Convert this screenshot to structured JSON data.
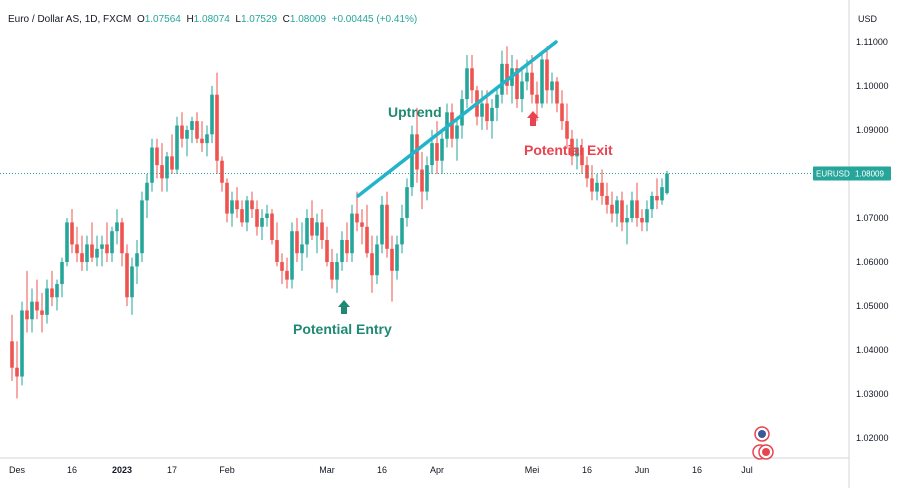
{
  "legend": {
    "symbol": "Euro / Dollar AS, 1D, FXCM",
    "open_label": "O",
    "open": "1.07564",
    "high_label": "H",
    "high": "1.08074",
    "low_label": "L",
    "low": "1.07529",
    "close_label": "C",
    "close": "1.08009",
    "change": "+0.00445 (+0.41%)"
  },
  "chart_data": {
    "type": "candlestick",
    "currency": "USD",
    "y_ticks": [
      "1.02000",
      "1.03000",
      "1.04000",
      "1.05000",
      "1.06000",
      "1.07000",
      "1.08000",
      "1.09000",
      "1.10000",
      "1.11000"
    ],
    "x_ticks": [
      {
        "label": "Des",
        "i": 1,
        "bold": false
      },
      {
        "label": "16",
        "i": 12,
        "bold": false
      },
      {
        "label": "2023",
        "i": 22,
        "bold": true
      },
      {
        "label": "17",
        "i": 32,
        "bold": false
      },
      {
        "label": "Feb",
        "i": 43,
        "bold": false
      },
      {
        "label": "Mar",
        "i": 63,
        "bold": false
      },
      {
        "label": "16",
        "i": 74,
        "bold": false
      },
      {
        "label": "Apr",
        "i": 85,
        "bold": false
      },
      {
        "label": "Mei",
        "i": 104,
        "bold": false
      },
      {
        "label": "16",
        "i": 115,
        "bold": false
      },
      {
        "label": "Jun",
        "i": 126,
        "bold": false
      },
      {
        "label": "16",
        "i": 137,
        "bold": false
      },
      {
        "label": "Jul",
        "i": 147,
        "bold": false
      }
    ],
    "price_label": {
      "symbol": "EURUSD",
      "value": "1.08009"
    },
    "ylim": [
      1.0155,
      1.1195
    ],
    "candles": [
      [
        1.042,
        1.048,
        1.033,
        1.036
      ],
      [
        1.036,
        1.042,
        1.029,
        1.034
      ],
      [
        1.034,
        1.051,
        1.032,
        1.049
      ],
      [
        1.049,
        1.058,
        1.044,
        1.047
      ],
      [
        1.047,
        1.054,
        1.044,
        1.051
      ],
      [
        1.051,
        1.056,
        1.047,
        1.049
      ],
      [
        1.049,
        1.053,
        1.044,
        1.048
      ],
      [
        1.048,
        1.056,
        1.046,
        1.054
      ],
      [
        1.054,
        1.058,
        1.05,
        1.052
      ],
      [
        1.052,
        1.056,
        1.049,
        1.055
      ],
      [
        1.055,
        1.061,
        1.052,
        1.06
      ],
      [
        1.06,
        1.07,
        1.059,
        1.069
      ],
      [
        1.069,
        1.072,
        1.062,
        1.064
      ],
      [
        1.064,
        1.068,
        1.06,
        1.062
      ],
      [
        1.062,
        1.066,
        1.058,
        1.06
      ],
      [
        1.06,
        1.066,
        1.058,
        1.064
      ],
      [
        1.064,
        1.069,
        1.06,
        1.061
      ],
      [
        1.061,
        1.066,
        1.059,
        1.063
      ],
      [
        1.063,
        1.066,
        1.059,
        1.064
      ],
      [
        1.064,
        1.069,
        1.06,
        1.062
      ],
      [
        1.062,
        1.068,
        1.06,
        1.067
      ],
      [
        1.067,
        1.072,
        1.064,
        1.069
      ],
      [
        1.069,
        1.07,
        1.059,
        1.062
      ],
      [
        1.062,
        1.064,
        1.05,
        1.052
      ],
      [
        1.052,
        1.061,
        1.048,
        1.059
      ],
      [
        1.059,
        1.065,
        1.055,
        1.062
      ],
      [
        1.062,
        1.076,
        1.06,
        1.074
      ],
      [
        1.074,
        1.08,
        1.07,
        1.078
      ],
      [
        1.078,
        1.088,
        1.076,
        1.086
      ],
      [
        1.086,
        1.088,
        1.079,
        1.082
      ],
      [
        1.082,
        1.087,
        1.076,
        1.079
      ],
      [
        1.079,
        1.085,
        1.076,
        1.084
      ],
      [
        1.084,
        1.089,
        1.08,
        1.081
      ],
      [
        1.081,
        1.093,
        1.08,
        1.091
      ],
      [
        1.091,
        1.094,
        1.086,
        1.088
      ],
      [
        1.088,
        1.091,
        1.084,
        1.09
      ],
      [
        1.09,
        1.093,
        1.087,
        1.092
      ],
      [
        1.092,
        1.094,
        1.087,
        1.088
      ],
      [
        1.088,
        1.092,
        1.085,
        1.087
      ],
      [
        1.087,
        1.091,
        1.084,
        1.089
      ],
      [
        1.089,
        1.1,
        1.087,
        1.098
      ],
      [
        1.098,
        1.103,
        1.08,
        1.083
      ],
      [
        1.083,
        1.084,
        1.076,
        1.078
      ],
      [
        1.078,
        1.079,
        1.069,
        1.071
      ],
      [
        1.071,
        1.076,
        1.068,
        1.074
      ],
      [
        1.074,
        1.077,
        1.07,
        1.072
      ],
      [
        1.072,
        1.074,
        1.068,
        1.069
      ],
      [
        1.069,
        1.075,
        1.067,
        1.074
      ],
      [
        1.074,
        1.076,
        1.07,
        1.072
      ],
      [
        1.072,
        1.074,
        1.066,
        1.068
      ],
      [
        1.068,
        1.072,
        1.065,
        1.07
      ],
      [
        1.07,
        1.073,
        1.068,
        1.071
      ],
      [
        1.071,
        1.072,
        1.064,
        1.065
      ],
      [
        1.065,
        1.069,
        1.059,
        1.06
      ],
      [
        1.06,
        1.062,
        1.055,
        1.058
      ],
      [
        1.058,
        1.061,
        1.054,
        1.056
      ],
      [
        1.056,
        1.069,
        1.054,
        1.067
      ],
      [
        1.067,
        1.07,
        1.06,
        1.062
      ],
      [
        1.062,
        1.069,
        1.058,
        1.064
      ],
      [
        1.064,
        1.072,
        1.061,
        1.07
      ],
      [
        1.07,
        1.074,
        1.065,
        1.066
      ],
      [
        1.066,
        1.071,
        1.062,
        1.069
      ],
      [
        1.069,
        1.072,
        1.063,
        1.065
      ],
      [
        1.065,
        1.068,
        1.059,
        1.06
      ],
      [
        1.06,
        1.063,
        1.054,
        1.056
      ],
      [
        1.056,
        1.062,
        1.053,
        1.06
      ],
      [
        1.06,
        1.067,
        1.058,
        1.065
      ],
      [
        1.065,
        1.069,
        1.06,
        1.062
      ],
      [
        1.062,
        1.073,
        1.06,
        1.071
      ],
      [
        1.071,
        1.076,
        1.067,
        1.069
      ],
      [
        1.069,
        1.072,
        1.064,
        1.068
      ],
      [
        1.068,
        1.073,
        1.061,
        1.062
      ],
      [
        1.062,
        1.066,
        1.053,
        1.057
      ],
      [
        1.057,
        1.066,
        1.055,
        1.064
      ],
      [
        1.064,
        1.075,
        1.062,
        1.073
      ],
      [
        1.073,
        1.076,
        1.061,
        1.063
      ],
      [
        1.063,
        1.066,
        1.051,
        1.058
      ],
      [
        1.058,
        1.066,
        1.056,
        1.064
      ],
      [
        1.064,
        1.073,
        1.062,
        1.07
      ],
      [
        1.07,
        1.079,
        1.068,
        1.077
      ],
      [
        1.077,
        1.091,
        1.075,
        1.089
      ],
      [
        1.089,
        1.095,
        1.078,
        1.081
      ],
      [
        1.081,
        1.085,
        1.072,
        1.076
      ],
      [
        1.076,
        1.084,
        1.074,
        1.082
      ],
      [
        1.082,
        1.09,
        1.08,
        1.087
      ],
      [
        1.087,
        1.092,
        1.08,
        1.083
      ],
      [
        1.083,
        1.09,
        1.08,
        1.088
      ],
      [
        1.088,
        1.096,
        1.086,
        1.094
      ],
      [
        1.094,
        1.096,
        1.086,
        1.088
      ],
      [
        1.088,
        1.093,
        1.083,
        1.091
      ],
      [
        1.091,
        1.099,
        1.088,
        1.097
      ],
      [
        1.097,
        1.107,
        1.095,
        1.104
      ],
      [
        1.104,
        1.107,
        1.096,
        1.099
      ],
      [
        1.099,
        1.1,
        1.091,
        1.093
      ],
      [
        1.093,
        1.099,
        1.09,
        1.096
      ],
      [
        1.096,
        1.099,
        1.09,
        1.092
      ],
      [
        1.092,
        1.097,
        1.088,
        1.095
      ],
      [
        1.095,
        1.1,
        1.092,
        1.098
      ],
      [
        1.098,
        1.108,
        1.096,
        1.105
      ],
      [
        1.105,
        1.109,
        1.098,
        1.1
      ],
      [
        1.1,
        1.107,
        1.096,
        1.104
      ],
      [
        1.104,
        1.106,
        1.095,
        1.097
      ],
      [
        1.097,
        1.104,
        1.094,
        1.101
      ],
      [
        1.101,
        1.106,
        1.099,
        1.103
      ],
      [
        1.103,
        1.107,
        1.096,
        1.098
      ],
      [
        1.098,
        1.101,
        1.092,
        1.096
      ],
      [
        1.096,
        1.108,
        1.095,
        1.106
      ],
      [
        1.106,
        1.109,
        1.096,
        1.099
      ],
      [
        1.099,
        1.103,
        1.096,
        1.101
      ],
      [
        1.101,
        1.102,
        1.094,
        1.096
      ],
      [
        1.096,
        1.099,
        1.09,
        1.092
      ],
      [
        1.092,
        1.096,
        1.086,
        1.088
      ],
      [
        1.088,
        1.09,
        1.082,
        1.084
      ],
      [
        1.084,
        1.088,
        1.081,
        1.086
      ],
      [
        1.086,
        1.088,
        1.08,
        1.082
      ],
      [
        1.082,
        1.084,
        1.077,
        1.079
      ],
      [
        1.079,
        1.082,
        1.074,
        1.076
      ],
      [
        1.076,
        1.08,
        1.074,
        1.078
      ],
      [
        1.078,
        1.081,
        1.073,
        1.075
      ],
      [
        1.075,
        1.078,
        1.071,
        1.073
      ],
      [
        1.073,
        1.076,
        1.069,
        1.071
      ],
      [
        1.071,
        1.075,
        1.068,
        1.074
      ],
      [
        1.074,
        1.076,
        1.067,
        1.069
      ],
      [
        1.069,
        1.073,
        1.064,
        1.07
      ],
      [
        1.07,
        1.076,
        1.069,
        1.074
      ],
      [
        1.074,
        1.078,
        1.068,
        1.07
      ],
      [
        1.07,
        1.072,
        1.067,
        1.069
      ],
      [
        1.069,
        1.074,
        1.067,
        1.072
      ],
      [
        1.072,
        1.076,
        1.07,
        1.075
      ],
      [
        1.075,
        1.079,
        1.072,
        1.074
      ],
      [
        1.074,
        1.079,
        1.073,
        1.077
      ],
      [
        1.07564,
        1.08074,
        1.07529,
        1.08009
      ]
    ],
    "annotations": {
      "uptrend": "Uptrend",
      "entry": "Potential Entry",
      "exit": "Potential Exit"
    },
    "colors": {
      "up": "#26a69a",
      "down": "#ef5350",
      "trendline": "#22b5c9",
      "entry": "#1f8a74",
      "exit": "#e8434f",
      "price_line": "#26a69a"
    }
  }
}
